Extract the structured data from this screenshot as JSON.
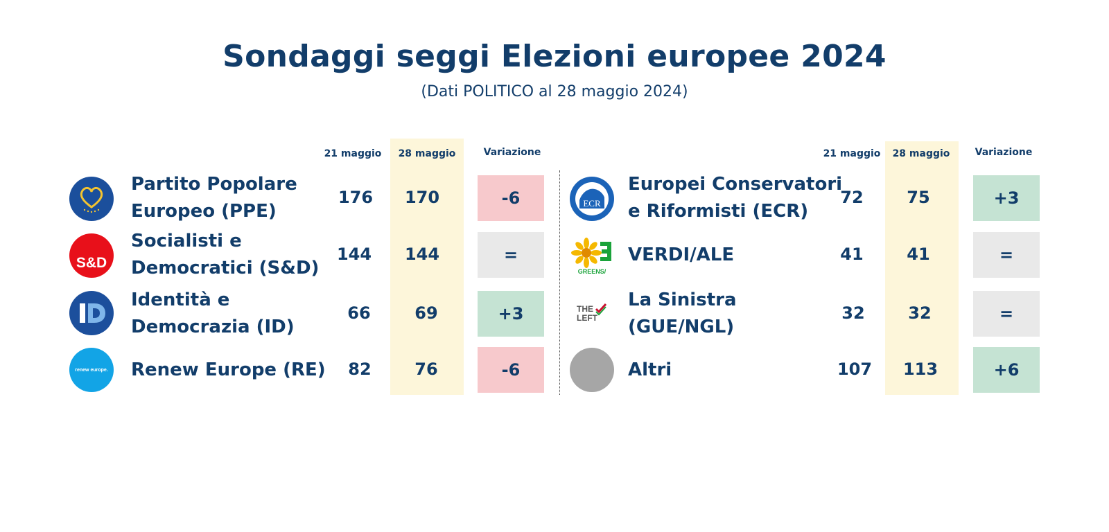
{
  "title": "Sondaggi seggi Elezioni europee 2024",
  "subtitle": "(Dati POLITICO al 28 maggio 2024)",
  "headers": {
    "prev": "21 maggio",
    "curr": "28 maggio",
    "change": "Variazione"
  },
  "colors": {
    "text": "#123d6a",
    "current_band": "#fdf6da",
    "negative": "#f7c9cc",
    "positive": "#c5e3d3",
    "unchanged": "#e9e9e9"
  },
  "chart_data": {
    "type": "table",
    "title": "Sondaggi seggi Elezioni europee 2024",
    "subtitle": "(Dati POLITICO al 28 maggio 2024)",
    "columns": [
      "21 maggio",
      "28 maggio",
      "Variazione"
    ],
    "left": [
      {
        "name_line1": "Partito Popolare",
        "name_line2": "Europeo (PPE)",
        "logo": "ppe-logo",
        "logo_text": "",
        "prev": 176,
        "curr": 170,
        "change": "-6",
        "trend": "neg"
      },
      {
        "name_line1": "Socialisti e",
        "name_line2": "Democratici (S&D)",
        "logo": "sd-logo",
        "logo_text": "S&D",
        "prev": 144,
        "curr": 144,
        "change": "=",
        "trend": "eq"
      },
      {
        "name_line1": "Identità e",
        "name_line2": "Democrazia (ID)",
        "logo": "id-logo",
        "logo_text": "ID",
        "prev": 66,
        "curr": 69,
        "change": "+3",
        "trend": "pos"
      },
      {
        "name_line1": "Renew Europe (RE)",
        "name_line2": "",
        "logo": "renew-logo",
        "logo_text": "renew europe.",
        "prev": 82,
        "curr": 76,
        "change": "-6",
        "trend": "neg"
      }
    ],
    "right": [
      {
        "name_line1": "Europei Conservatori",
        "name_line2": "e Riformisti (ECR)",
        "logo": "ecr-logo",
        "logo_text": "ECR",
        "prev": 72,
        "curr": 75,
        "change": "+3",
        "trend": "pos"
      },
      {
        "name_line1": "VERDI/ALE",
        "name_line2": "",
        "logo": "greens-logo",
        "logo_text": "GREENS/",
        "prev": 41,
        "curr": 41,
        "change": "=",
        "trend": "eq"
      },
      {
        "name_line1": "La Sinistra",
        "name_line2": "(GUE/NGL)",
        "logo": "the-left-logo",
        "logo_text": "THE LEFT",
        "prev": 32,
        "curr": 32,
        "change": "=",
        "trend": "eq"
      },
      {
        "name_line1": "Altri",
        "name_line2": "",
        "logo": "others-logo",
        "logo_text": "",
        "prev": 107,
        "curr": 113,
        "change": "+6",
        "trend": "pos"
      }
    ]
  }
}
